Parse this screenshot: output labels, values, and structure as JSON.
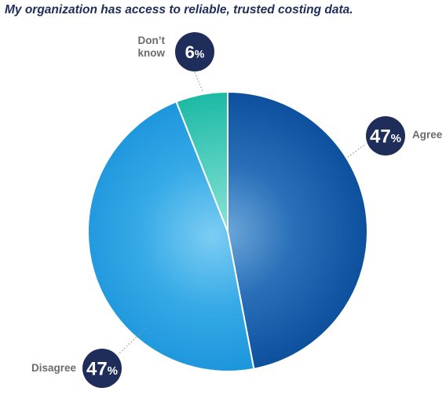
{
  "chart_data": {
    "type": "pie",
    "title": "My organization has access to reliable, trusted costing data.",
    "categories": [
      "Agree",
      "Disagree",
      "Don’t know"
    ],
    "values": [
      47,
      47,
      6
    ],
    "unit": "%",
    "colors": [
      "#0a4e9c",
      "#1a93db",
      "#17b3a0"
    ],
    "label_lines": {
      "Agree": [
        "Agree"
      ],
      "Disagree": [
        "Disagree"
      ],
      "Don’t know": [
        "Don’t",
        "know"
      ]
    },
    "badge_color": "#1f2d5a"
  }
}
